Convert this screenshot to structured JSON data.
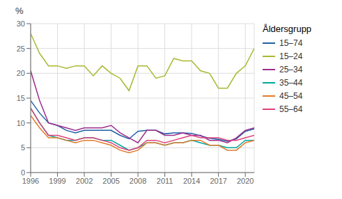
{
  "chart_data": {
    "type": "line",
    "ylabel": "%",
    "legend_title": "Åldersgrupp",
    "legend": "right",
    "grid": true,
    "x": [
      1996,
      1997,
      1998,
      1999,
      2000,
      2001,
      2002,
      2003,
      2004,
      2005,
      2006,
      2007,
      2008,
      2009,
      2010,
      2011,
      2012,
      2013,
      2014,
      2015,
      2016,
      2017,
      2018,
      2019,
      2020,
      2021
    ],
    "xlim": [
      1996,
      2021
    ],
    "xticks": [
      1996,
      1999,
      2002,
      2005,
      2008,
      2011,
      2014,
      2017,
      2020
    ],
    "ylim": [
      0,
      30
    ],
    "yticks": [
      0,
      5,
      10,
      15,
      20,
      25,
      30
    ],
    "series": [
      {
        "name": "15–74",
        "color": "#1f5fa6",
        "values": [
          14.5,
          12.0,
          10.0,
          9.5,
          8.5,
          8.0,
          8.5,
          8.5,
          8.5,
          8.5,
          7.5,
          6.8,
          8.3,
          8.5,
          8.5,
          7.8,
          8.0,
          8.0,
          7.9,
          7.4,
          6.9,
          6.7,
          6.3,
          6.8,
          8.3,
          8.8
        ]
      },
      {
        "name": "15–24",
        "color": "#aab832",
        "values": [
          28.0,
          24.0,
          21.5,
          21.5,
          21.0,
          21.5,
          21.5,
          19.5,
          21.5,
          20.0,
          19.0,
          16.5,
          21.5,
          21.5,
          19.0,
          19.5,
          23.0,
          22.5,
          22.5,
          20.5,
          20.0,
          17.0,
          17.0,
          20.0,
          21.5,
          25.0
        ]
      },
      {
        "name": "25–34",
        "color": "#9b2d8e",
        "values": [
          20.5,
          14.5,
          10.0,
          9.5,
          9.0,
          8.5,
          9.0,
          9.0,
          9.0,
          9.5,
          8.0,
          7.0,
          6.0,
          8.5,
          8.5,
          7.5,
          7.5,
          8.0,
          7.5,
          7.5,
          6.5,
          6.5,
          6.0,
          7.0,
          8.5,
          9.0
        ]
      },
      {
        "name": "35–44",
        "color": "#00a89e",
        "values": [
          13.0,
          10.0,
          7.5,
          7.0,
          6.5,
          6.5,
          7.0,
          7.0,
          6.5,
          6.5,
          5.5,
          4.5,
          5.0,
          6.0,
          6.0,
          5.5,
          6.0,
          6.0,
          6.5,
          6.0,
          5.5,
          5.5,
          5.0,
          5.0,
          6.5,
          6.5
        ]
      },
      {
        "name": "45–54",
        "color": "#e07b2a",
        "values": [
          11.5,
          9.0,
          7.0,
          7.0,
          6.5,
          6.0,
          6.5,
          6.5,
          6.0,
          5.5,
          4.5,
          4.0,
          4.5,
          6.0,
          6.0,
          5.5,
          6.0,
          6.0,
          6.5,
          6.5,
          5.5,
          5.5,
          4.5,
          4.5,
          6.0,
          6.5
        ]
      },
      {
        "name": "55–64",
        "color": "#e0407b",
        "values": [
          13.0,
          10.0,
          7.5,
          7.5,
          7.0,
          6.5,
          7.0,
          7.0,
          6.5,
          6.0,
          5.0,
          4.5,
          5.0,
          6.5,
          6.5,
          6.0,
          6.5,
          7.0,
          7.5,
          7.0,
          7.0,
          7.0,
          6.5,
          6.5,
          7.0,
          7.5
        ]
      }
    ]
  }
}
